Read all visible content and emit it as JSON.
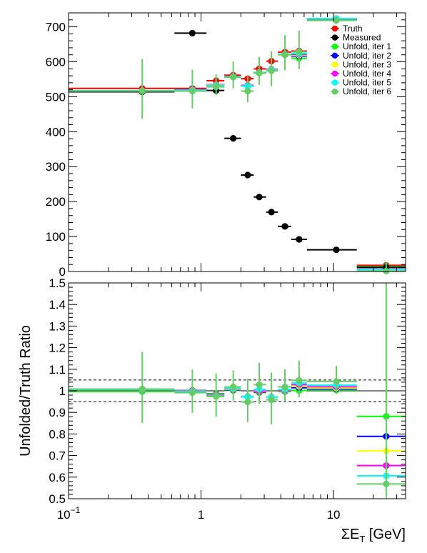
{
  "chart_data": [
    {
      "type": "scatter",
      "panel": "top",
      "title": "",
      "xlabel": "",
      "ylabel": "",
      "xscale": "log",
      "xlim": [
        0.1,
        35
      ],
      "ylim": [
        0,
        740
      ],
      "yticks": [
        "0",
        "100",
        "200",
        "300",
        "400",
        "500",
        "600",
        "700"
      ],
      "legend": {
        "placement": "top-right",
        "entries": [
          {
            "label": "Truth",
            "color": "#ff0000"
          },
          {
            "label": "Measured",
            "color": "#000000"
          },
          {
            "label": "Unfold, iter 1",
            "color": "#00ff00"
          },
          {
            "label": "Unfold, iter 2",
            "color": "#0000ff"
          },
          {
            "label": "Unfold, iter 3",
            "color": "#ffff00"
          },
          {
            "label": "Unfold, iter 4",
            "color": "#ff00ff"
          },
          {
            "label": "Unfold, iter 5",
            "color": "#00ffff"
          },
          {
            "label": "Unfold, iter 6",
            "color": "#66cc66"
          }
        ]
      },
      "bins": [
        {
          "lo": 0.1,
          "hi": 0.63,
          "x": 0.36
        },
        {
          "lo": 0.63,
          "hi": 1.1,
          "x": 0.86
        },
        {
          "lo": 1.1,
          "hi": 1.5,
          "x": 1.3
        },
        {
          "lo": 1.5,
          "hi": 2.0,
          "x": 1.75
        },
        {
          "lo": 2.0,
          "hi": 2.5,
          "x": 2.25
        },
        {
          "lo": 2.5,
          "hi": 3.1,
          "x": 2.75
        },
        {
          "lo": 3.1,
          "hi": 3.8,
          "x": 3.4
        },
        {
          "lo": 3.8,
          "hi": 4.8,
          "x": 4.3
        },
        {
          "lo": 4.8,
          "hi": 6.3,
          "x": 5.5
        },
        {
          "lo": 6.3,
          "hi": 15,
          "x": 10.5
        },
        {
          "lo": 15,
          "hi": 35,
          "x": 25
        }
      ],
      "series": [
        {
          "name": "Truth",
          "color": "#ff0000",
          "values": [
            518,
            518,
            540,
            556,
            546,
            574,
            596,
            622,
            625,
            718,
            12
          ]
        },
        {
          "name": "Measured",
          "color": "#000000",
          "values": [
            514,
            682,
            518,
            381,
            276,
            213,
            170,
            129,
            92,
            62,
            12
          ]
        },
        {
          "name": "Unfold, iter 1",
          "color": "#00ff00",
          "values": [
            512,
            516,
            530,
            552,
            526,
            564,
            574,
            616,
            606,
            716,
            10
          ]
        },
        {
          "name": "Unfold, iter 2",
          "color": "#0000ff",
          "values": [
            514,
            518,
            532,
            554,
            530,
            566,
            576,
            618,
            614,
            720,
            9
          ]
        },
        {
          "name": "Unfold, iter 3",
          "color": "#ffff00",
          "values": [
            516,
            519,
            533,
            556,
            531,
            568,
            577,
            620,
            618,
            722,
            9
          ]
        },
        {
          "name": "Unfold, iter 4",
          "color": "#ff00ff",
          "values": [
            518,
            520,
            533,
            558,
            532,
            570,
            578,
            622,
            622,
            724,
            8
          ]
        },
        {
          "name": "Unfold, iter 5",
          "color": "#00ffff",
          "values": [
            520,
            521,
            534,
            560,
            533,
            572,
            579,
            624,
            626,
            726,
            8
          ]
        },
        {
          "name": "Unfold, iter 6",
          "color": "#66cc66",
          "values": [
            522,
            522,
            534,
            562,
            522,
            574,
            580,
            626,
            634,
            724,
            7
          ],
          "errors": [
            85,
            55,
            30,
            38,
            38,
            40,
            50,
            50,
            55,
            5,
            20
          ]
        }
      ]
    },
    {
      "type": "scatter",
      "panel": "bottom",
      "title": "",
      "xlabel": "ΣE_T [GeV]",
      "ylabel": "Unfolded/Truth Ratio",
      "xscale": "log",
      "xlim": [
        0.1,
        35
      ],
      "ylim": [
        0.5,
        1.5
      ],
      "xticks": [
        {
          "value": 0.1,
          "label": "10",
          "sup": "−1"
        },
        {
          "value": 1,
          "label": "1",
          "sup": ""
        },
        {
          "value": 10,
          "label": "10",
          "sup": ""
        }
      ],
      "yticks": [
        "0.5",
        "0.6",
        "0.7",
        "0.8",
        "0.9",
        "1",
        "1.1",
        "1.2",
        "1.3",
        "1.4",
        "1.5"
      ],
      "reference_lines": [
        1.0
      ],
      "dashed_lines": [
        0.95,
        1.05
      ],
      "series": [
        {
          "name": "Unfold, iter 1",
          "color": "#00ff00",
          "values": [
            0.99,
            0.995,
            0.98,
            0.995,
            0.965,
            0.985,
            0.965,
            0.99,
            0.995,
            0.997,
            0.875
          ]
        },
        {
          "name": "Unfold, iter 2",
          "color": "#0000ff",
          "values": [
            1.0,
            0.997,
            0.98,
            1.0,
            0.97,
            0.99,
            0.968,
            0.995,
            1.01,
            1.005,
            0.785
          ]
        },
        {
          "name": "Unfold, iter 3",
          "color": "#ffff00",
          "values": [
            1.003,
            0.998,
            0.98,
            1.005,
            0.972,
            0.995,
            0.97,
            1.0,
            1.02,
            1.012,
            0.72
          ]
        },
        {
          "name": "Unfold, iter 4",
          "color": "#ff00ff",
          "values": [
            1.006,
            0.999,
            0.98,
            1.01,
            0.974,
            1.0,
            0.972,
            1.005,
            1.03,
            1.02,
            0.655
          ]
        },
        {
          "name": "Unfold, iter 5",
          "color": "#00ffff",
          "values": [
            1.01,
            1.0,
            0.98,
            1.015,
            0.976,
            1.01,
            0.974,
            1.01,
            1.04,
            1.03,
            0.61
          ]
        },
        {
          "name": "Unfold, iter 6",
          "color": "#66cc66",
          "values": [
            1.015,
            0.998,
            0.98,
            1.025,
            0.955,
            1.035,
            0.965,
            1.025,
            1.055,
            1.05,
            0.575
          ],
          "errors": [
            0.165,
            0.1,
            0.1,
            0.07,
            0.1,
            0.095,
            0.12,
            0.075,
            0.085,
            0.065,
            0.93
          ]
        }
      ]
    }
  ]
}
